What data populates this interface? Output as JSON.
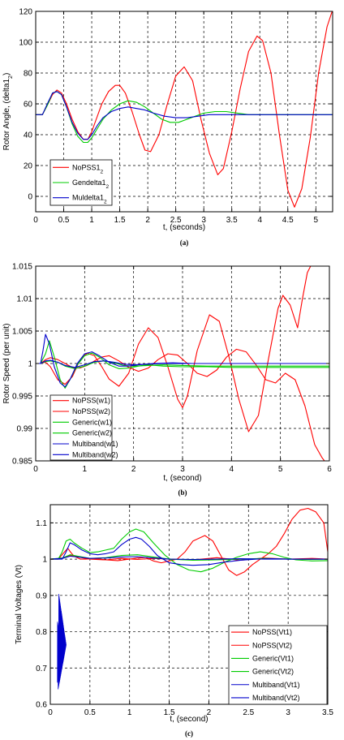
{
  "chart_data": [
    {
      "type": "line",
      "caption": "(a)",
      "xlabel": "t, (seconds)",
      "ylabel_parts": [
        "Rotor Angle, (delta1",
        "2",
        ")"
      ],
      "xlim": [
        0,
        5.3
      ],
      "ylim": [
        -10,
        120
      ],
      "xticks": [
        0,
        0.5,
        1,
        1.5,
        2,
        2.5,
        3,
        3.5,
        4,
        4.5,
        5
      ],
      "xtick_labels": [
        "0",
        "0.5",
        "1",
        "1.5",
        "2",
        "2.5",
        "3",
        "3.5",
        "4",
        "4.5",
        "5"
      ],
      "yticks": [
        0,
        20,
        40,
        60,
        80,
        100,
        120
      ],
      "ytick_labels": [
        "0",
        "20",
        "40",
        "60",
        "80",
        "100",
        "120"
      ],
      "grid": true,
      "legend_position": "bottom-left",
      "series": [
        {
          "name_base": "NoPSS1",
          "name_sub": "2",
          "color": "#ff0000",
          "x": [
            0,
            0.12,
            0.22,
            0.3,
            0.38,
            0.46,
            0.55,
            0.65,
            0.75,
            0.85,
            0.93,
            1.0,
            1.08,
            1.18,
            1.3,
            1.42,
            1.5,
            1.6,
            1.72,
            1.85,
            1.95,
            2.05,
            2.2,
            2.35,
            2.5,
            2.65,
            2.8,
            2.95,
            3.1,
            3.25,
            3.35,
            3.5,
            3.65,
            3.8,
            3.95,
            4.05,
            4.2,
            4.35,
            4.5,
            4.62,
            4.75,
            4.9,
            5.05,
            5.2,
            5.3
          ],
          "y": [
            53,
            53,
            60,
            66,
            69,
            67,
            60,
            50,
            42,
            37,
            37,
            42,
            50,
            60,
            68,
            72,
            72,
            67,
            55,
            40,
            30,
            29,
            40,
            60,
            78,
            84,
            75,
            50,
            28,
            14,
            18,
            42,
            70,
            94,
            104,
            101,
            80,
            40,
            4,
            -7,
            5,
            38,
            80,
            110,
            121
          ]
        },
        {
          "name_base": "Gendelta1",
          "name_sub": "2",
          "color": "#00cc00",
          "x": [
            0,
            0.12,
            0.22,
            0.3,
            0.38,
            0.46,
            0.55,
            0.65,
            0.75,
            0.85,
            0.93,
            1.0,
            1.1,
            1.2,
            1.35,
            1.5,
            1.65,
            1.8,
            1.95,
            2.1,
            2.25,
            2.4,
            2.55,
            2.7,
            2.85,
            3.0,
            3.2,
            3.4,
            3.6,
            3.8,
            4.0,
            4.3,
            4.6,
            5.0,
            5.3
          ],
          "y": [
            53,
            53,
            60,
            67,
            68,
            66,
            58,
            47,
            39,
            35,
            35,
            38,
            44,
            50,
            56,
            60,
            62,
            61,
            58,
            54,
            50,
            48,
            48,
            50,
            52,
            54,
            55,
            55,
            54,
            53,
            53,
            53,
            53,
            53,
            53
          ]
        },
        {
          "name_base": "Muldelta1",
          "name_sub": "2",
          "color": "#0000cc",
          "x": [
            0,
            0.12,
            0.22,
            0.3,
            0.38,
            0.46,
            0.55,
            0.65,
            0.75,
            0.85,
            0.93,
            1.0,
            1.1,
            1.2,
            1.35,
            1.5,
            1.65,
            1.8,
            1.95,
            2.1,
            2.3,
            2.5,
            2.7,
            2.9,
            3.1,
            3.4,
            3.8,
            4.2,
            4.6,
            5.0,
            5.3
          ],
          "y": [
            53,
            53,
            61,
            67,
            68,
            66,
            58,
            48,
            41,
            37,
            37,
            40,
            46,
            51,
            55,
            57,
            58,
            57,
            56,
            54,
            52,
            51,
            51,
            52,
            53,
            53,
            53,
            53,
            53,
            53,
            53
          ]
        }
      ]
    },
    {
      "type": "line",
      "caption": "(b)",
      "xlabel": "t, (second)",
      "ylabel": "Rotor Speed (per unit)",
      "xlim": [
        0,
        6
      ],
      "ylim": [
        0.985,
        1.015
      ],
      "xticks": [
        0,
        1,
        2,
        3,
        4,
        5,
        6
      ],
      "xtick_labels": [
        "0",
        "1",
        "2",
        "3",
        "4",
        "5",
        "6"
      ],
      "yticks": [
        0.985,
        0.99,
        0.995,
        1,
        1.005,
        1.01,
        1.015
      ],
      "ytick_labels": [
        "0.985",
        "0.99",
        "0.995",
        "1",
        "1.005",
        "1.01",
        "1.015"
      ],
      "grid": true,
      "legend_position": "bottom-left",
      "series": [
        {
          "name": "NoPSS(w1)",
          "color": "#ff0000",
          "x": [
            0,
            0.1,
            0.2,
            0.3,
            0.45,
            0.6,
            0.75,
            0.9,
            1.05,
            1.2,
            1.35,
            1.5,
            1.7,
            1.9,
            2.1,
            2.3,
            2.5,
            2.7,
            2.9,
            3.0,
            3.1,
            3.3,
            3.55,
            3.75,
            3.95,
            4.15,
            4.35,
            4.55,
            4.75,
            4.95,
            5.05,
            5.2,
            5.35,
            5.45,
            5.55,
            5.65
          ],
          "y": [
            1,
            1,
            1.0002,
            0.9995,
            0.9975,
            0.9968,
            0.998,
            1.0005,
            1.0016,
            1.0012,
            0.9995,
            0.9976,
            0.9965,
            0.9985,
            1.003,
            1.0055,
            1.004,
            0.9995,
            0.9945,
            0.9932,
            0.995,
            1.002,
            1.0075,
            1.0065,
            1.001,
            0.9945,
            0.9895,
            0.992,
            1.0005,
            1.0085,
            1.0105,
            1.009,
            1.0055,
            1.01,
            1.014,
            1.0155
          ]
        },
        {
          "name": "NoPSS(w2)",
          "color": "#ff0000",
          "x": [
            0,
            0.1,
            0.2,
            0.3,
            0.45,
            0.6,
            0.75,
            0.9,
            1.05,
            1.2,
            1.35,
            1.5,
            1.7,
            1.9,
            2.1,
            2.3,
            2.5,
            2.7,
            2.9,
            3.1,
            3.3,
            3.5,
            3.7,
            3.9,
            4.1,
            4.3,
            4.5,
            4.7,
            4.9,
            5.1,
            5.3,
            5.5,
            5.7,
            5.85,
            6.0
          ],
          "y": [
            1,
            1,
            1.0006,
            1.0009,
            1.0006,
            1.0,
            0.9994,
            0.9993,
            0.9997,
            1.0004,
            1.001,
            1.0012,
            1.0004,
            0.9994,
            0.9988,
            0.9993,
            1.0006,
            1.0015,
            1.0013,
            1.0,
            0.9985,
            0.998,
            0.999,
            1.001,
            1.0022,
            1.0018,
            0.9998,
            0.9975,
            0.997,
            0.9985,
            0.9975,
            0.9935,
            0.9875,
            0.9855,
            0.984
          ]
        },
        {
          "name": "Generic(w1)",
          "color": "#00cc00",
          "x": [
            0,
            0.1,
            0.2,
            0.28,
            0.38,
            0.5,
            0.6,
            0.7,
            0.85,
            1.0,
            1.15,
            1.3,
            1.5,
            1.7,
            1.9,
            2.1,
            2.3,
            2.6,
            3.0,
            3.5,
            4.0,
            5.0,
            6.0
          ],
          "y": [
            1,
            1,
            1.0015,
            1.0035,
            1.001,
            0.9975,
            0.9962,
            0.9975,
            0.9998,
            1.0012,
            1.0016,
            1.001,
            0.9998,
            0.9992,
            0.9993,
            0.9996,
            0.9998,
            0.9996,
            0.9995,
            0.9995,
            0.9994,
            0.9994,
            0.9994
          ]
        },
        {
          "name": "Generic(w2)",
          "color": "#00cc00",
          "x": [
            0,
            0.1,
            0.2,
            0.3,
            0.45,
            0.6,
            0.8,
            1.0,
            1.2,
            1.4,
            1.6,
            1.8,
            2.0,
            2.3,
            2.6,
            3.0,
            3.5,
            4.0,
            5.0,
            6.0
          ],
          "y": [
            1,
            1,
            1.0003,
            1.0004,
            1.0002,
            0.9996,
            0.9992,
            0.9996,
            1.0002,
            1.0004,
            1.0001,
            0.9997,
            0.9996,
            0.9997,
            0.9998,
            0.9997,
            0.9996,
            0.9996,
            0.9996,
            0.9996
          ]
        },
        {
          "name": "Multiband(w1)",
          "color": "#0000cc",
          "x": [
            0,
            0.1,
            0.15,
            0.2,
            0.28,
            0.38,
            0.5,
            0.6,
            0.7,
            0.85,
            1.0,
            1.15,
            1.3,
            1.5,
            1.7,
            1.9,
            2.1,
            2.4,
            2.8,
            3.2,
            4.0,
            5.0,
            6.0
          ],
          "y": [
            1,
            1,
            1.002,
            1.0045,
            1.003,
            0.9995,
            0.997,
            0.9964,
            0.9975,
            1.0,
            1.0015,
            1.0018,
            1.0012,
            1.0002,
            0.9996,
            0.9996,
            0.9998,
            1.0,
            1.0001,
            1.0,
            1.0,
            1.0,
            1.0
          ]
        },
        {
          "name": "Multiband(w2)",
          "color": "#0000cc",
          "x": [
            0,
            0.1,
            0.2,
            0.3,
            0.45,
            0.6,
            0.8,
            1.0,
            1.2,
            1.4,
            1.6,
            1.8,
            2.0,
            2.3,
            2.6,
            3.0,
            3.5,
            4.0,
            5.0,
            6.0
          ],
          "y": [
            1,
            1,
            1.0004,
            1.0005,
            1.0002,
            0.9997,
            0.9994,
            0.9998,
            1.0003,
            1.0004,
            1.0002,
            0.9999,
            0.9998,
            0.9999,
            1.0,
            1.0,
            1.0,
            1.0,
            1.0,
            1.0
          ]
        }
      ]
    },
    {
      "type": "line",
      "caption": "(c)",
      "xlabel": "t, (second)",
      "ylabel": "Terminal Voltages (Vt)",
      "xlim": [
        0,
        3.5
      ],
      "ylim": [
        0.6,
        1.15
      ],
      "xticks": [
        0,
        0.5,
        1,
        1.5,
        2,
        2.5,
        3,
        3.5
      ],
      "xtick_labels": [
        "0",
        "0.5",
        "1",
        "1.5",
        "2",
        "2.5",
        "3",
        "3.5"
      ],
      "yticks": [
        0.6,
        0.7,
        0.8,
        0.9,
        1,
        1.1
      ],
      "ytick_labels": [
        "0.6",
        "0.7",
        "0.8",
        "0.9",
        "1",
        "1.1"
      ],
      "grid": true,
      "legend_position": "bottom-right",
      "series": [
        {
          "name": "NoPSS(Vt1)",
          "color": "#ff0000",
          "x": [
            0,
            0.1,
            0.14,
            0.18,
            0.22,
            0.26,
            0.3,
            0.38,
            0.45,
            0.55,
            0.7,
            0.85,
            1.0,
            1.1,
            1.2,
            1.3,
            1.4,
            1.5,
            1.6,
            1.7,
            1.8,
            1.95,
            2.05,
            2.15,
            2.25,
            2.35,
            2.45,
            2.55,
            2.65,
            2.75,
            2.85,
            2.95,
            3.05,
            3.15,
            3.25,
            3.35,
            3.45,
            3.5
          ],
          "y": [
            1,
            1,
            1.01,
            1.02,
            1.03,
            1.018,
            1.008,
            1.0,
            1.0,
            1.002,
            0.998,
            0.996,
            1.0,
            1.003,
            1.005,
            0.995,
            0.99,
            0.995,
            1.0,
            1.02,
            1.05,
            1.065,
            1.05,
            1.01,
            0.97,
            0.955,
            0.965,
            0.985,
            1.0,
            1.015,
            1.035,
            1.07,
            1.11,
            1.135,
            1.14,
            1.13,
            1.1,
            1.02
          ]
        },
        {
          "name": "NoPSS(Vt2)",
          "color": "#ff0000",
          "x": [
            0,
            0.15,
            0.25,
            0.35,
            0.5,
            0.7,
            0.9,
            1.1,
            1.3,
            1.5,
            1.8,
            2.1,
            2.4,
            2.7,
            3.0,
            3.3,
            3.5
          ],
          "y": [
            1,
            1.002,
            1.01,
            1.006,
            1.0,
            0.998,
            1.002,
            0.999,
            1.002,
            1.0,
            0.998,
            1.004,
            0.997,
            1.003,
            1.0,
            1.002,
            1.0
          ]
        },
        {
          "name": "Generic(Vt1)",
          "color": "#00cc00",
          "x": [
            0,
            0.1,
            0.15,
            0.2,
            0.25,
            0.3,
            0.4,
            0.5,
            0.6,
            0.7,
            0.8,
            0.9,
            1.0,
            1.08,
            1.18,
            1.3,
            1.45,
            1.6,
            1.75,
            1.9,
            2.05,
            2.2,
            2.35,
            2.5,
            2.65,
            2.8,
            2.95,
            3.1,
            3.3,
            3.5
          ],
          "y": [
            1,
            1,
            1.02,
            1.05,
            1.055,
            1.045,
            1.03,
            1.018,
            1.02,
            1.025,
            1.03,
            1.055,
            1.075,
            1.083,
            1.075,
            1.045,
            1.01,
            0.985,
            0.97,
            0.965,
            0.975,
            0.992,
            1.005,
            1.015,
            1.02,
            1.015,
            1.005,
            0.998,
            0.995,
            0.996
          ]
        },
        {
          "name": "Generic(Vt2)",
          "color": "#00cc00",
          "x": [
            0,
            0.15,
            0.25,
            0.35,
            0.5,
            0.7,
            0.9,
            1.1,
            1.3,
            1.5,
            1.8,
            2.1,
            2.4,
            2.7,
            3.0,
            3.3,
            3.5
          ],
          "y": [
            1,
            1.003,
            1.012,
            1.008,
            1.002,
            1.004,
            1.01,
            1.012,
            1.006,
            1.0,
            0.997,
            0.998,
            1.0,
            1.002,
            1.0,
            0.999,
            1.0
          ]
        },
        {
          "name": "Multiband(Vt1)",
          "color": "#0000cc",
          "x": [
            0,
            0.1,
            0.15,
            0.2,
            0.25,
            0.3,
            0.4,
            0.5,
            0.6,
            0.7,
            0.8,
            0.9,
            1.0,
            1.08,
            1.15,
            1.25,
            1.35,
            1.5,
            1.65,
            1.8,
            2.0,
            2.2,
            2.4,
            2.6,
            2.8,
            3.0,
            3.2,
            3.5
          ],
          "y": [
            1,
            1,
            1.0,
            1.02,
            1.045,
            1.04,
            1.025,
            1.015,
            1.012,
            1.015,
            1.02,
            1.04,
            1.055,
            1.06,
            1.055,
            1.035,
            1.01,
            0.99,
            0.985,
            0.983,
            0.985,
            0.992,
            0.997,
            1.0,
            1.001,
            1.0,
            1.0,
            1.0
          ]
        },
        {
          "name": "Multiband(Vt2)",
          "color": "#0000cc",
          "x": [
            0,
            0.15,
            0.25,
            0.35,
            0.5,
            0.7,
            0.9,
            1.1,
            1.3,
            1.5,
            1.8,
            2.1,
            2.4,
            2.7,
            3.0,
            3.3,
            3.5
          ],
          "y": [
            1,
            1.002,
            1.008,
            1.006,
            1.002,
            1.003,
            1.006,
            1.007,
            1.003,
            1.0,
            0.999,
            1.0,
            1.001,
            1.0,
            1.0,
            1.0,
            1.0
          ]
        }
      ]
    }
  ]
}
